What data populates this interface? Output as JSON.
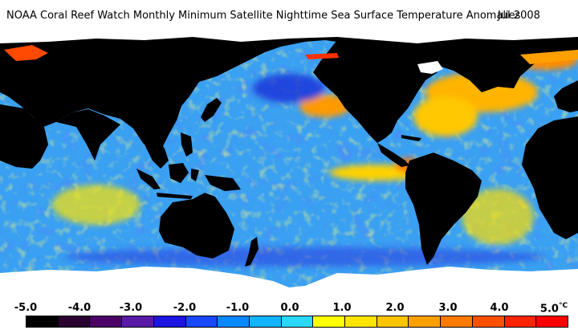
{
  "title": {
    "main": "NOAA Coral Reef Watch Monthly Minimum Satellite Nighttime Sea Surface Temperature Anomalies",
    "date": "Jul 2008"
  },
  "legend": {
    "ticks": [
      "-5.0",
      "-4.0",
      "-3.0",
      "-2.0",
      "-1.0",
      "0.0",
      "1.0",
      "2.0",
      "3.0",
      "4.0",
      "5.0"
    ],
    "unit": "°C",
    "colors": [
      "#000000",
      "#2a0030",
      "#4a0066",
      "#5a1aa8",
      "#1c14e0",
      "#1848ff",
      "#0a88ff",
      "#10b4ff",
      "#2ad8ff",
      "#ffff00",
      "#ffe400",
      "#ffc400",
      "#ffa000",
      "#ff7a00",
      "#ff5000",
      "#ff2400",
      "#ff0000"
    ]
  },
  "colors": {
    "land": "#000000",
    "ice": "#ffffff",
    "ocean_neutral": "#3c96f0"
  }
}
